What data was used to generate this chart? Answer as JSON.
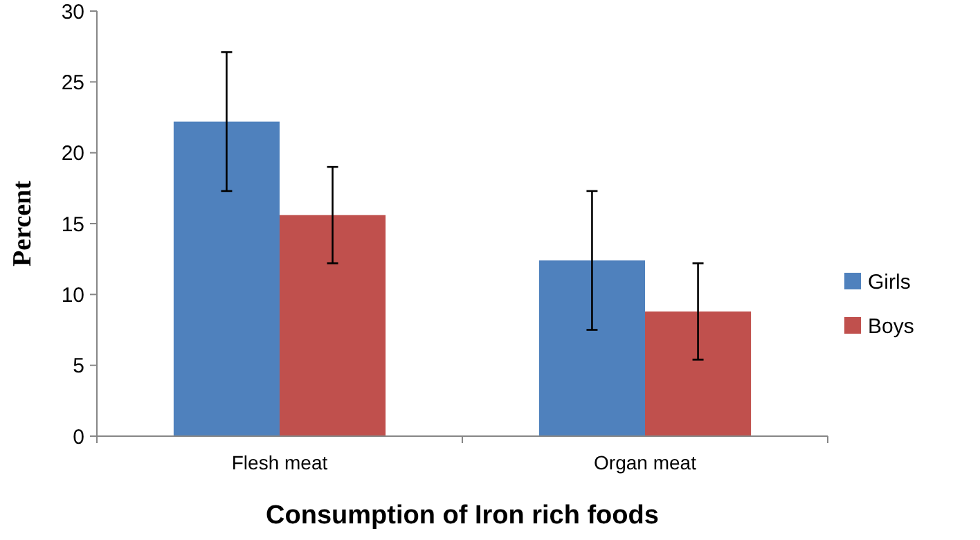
{
  "chart_data": {
    "type": "bar",
    "xlabel": "Consumption of Iron rich foods",
    "ylabel": "Percent",
    "categories": [
      "Flesh meat",
      "Organ meat"
    ],
    "series": [
      {
        "name": "Girls",
        "color": "#4f81bd",
        "values": [
          22.2,
          12.4
        ],
        "errors": [
          [
            17.3,
            27.1
          ],
          [
            7.5,
            17.3
          ]
        ]
      },
      {
        "name": "Boys",
        "color": "#c0504d",
        "values": [
          15.6,
          8.8
        ],
        "errors": [
          [
            12.2,
            19.0
          ],
          [
            5.4,
            12.2
          ]
        ]
      }
    ],
    "ylim": [
      0,
      30
    ],
    "yticks": [
      0,
      5,
      10,
      15,
      20,
      25,
      30
    ],
    "grid": false,
    "legend": "right"
  }
}
